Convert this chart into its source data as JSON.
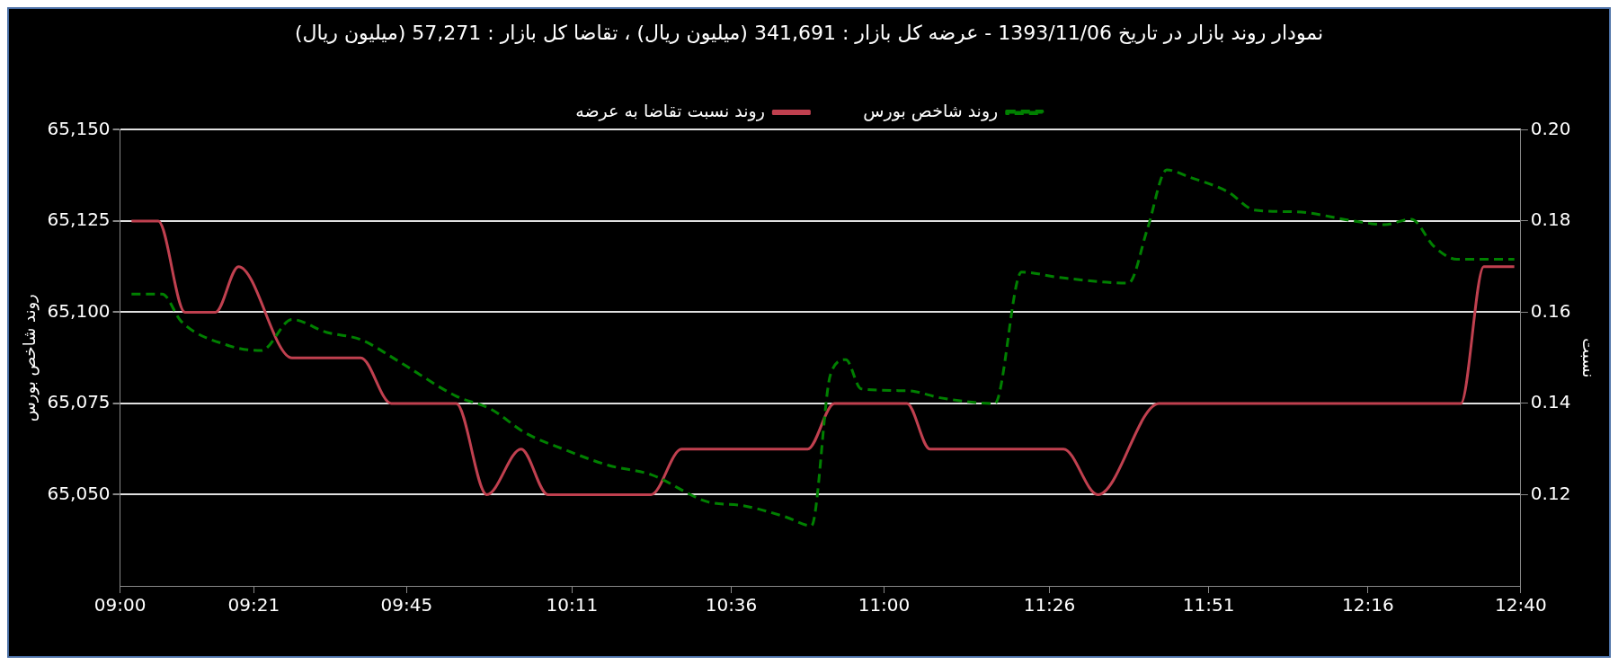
{
  "chart_data": {
    "type": "line",
    "title": "نمودار روند بازار در تاریخ 1393/11/06 - عرضه کل بازار : 341,691 (میلیون ریال) ، تقاضا کل بازار : 57,271 (میلیون ریال)",
    "ylabel": "روند شاخص بورس",
    "y2label": "نسبت",
    "xlim": [
      9,
      12.667
    ],
    "xticks": [
      {
        "value": 9,
        "label": "09:00"
      },
      {
        "value": 9.35,
        "label": "09:21"
      },
      {
        "value": 9.75,
        "label": "09:45"
      },
      {
        "value": 10.183,
        "label": "10:11"
      },
      {
        "value": 10.6,
        "label": "10:36"
      },
      {
        "value": 11,
        "label": "11:00"
      },
      {
        "value": 11.433,
        "label": "11:26"
      },
      {
        "value": 11.85,
        "label": "11:51"
      },
      {
        "value": 12.267,
        "label": "12:16"
      },
      {
        "value": 12.667,
        "label": "12:40"
      }
    ],
    "ylim": [
      65025,
      65150
    ],
    "yticks": [
      {
        "value": 65050,
        "label": "65,050"
      },
      {
        "value": 65075,
        "label": "65,075"
      },
      {
        "value": 65100,
        "label": "65,100"
      },
      {
        "value": 65125,
        "label": "65,125"
      },
      {
        "value": 65150,
        "label": "65,150"
      }
    ],
    "y2lim": [
      0.1,
      0.2
    ],
    "y2ticks": [
      {
        "value": 0.12,
        "label": "0.12"
      },
      {
        "value": 0.14,
        "label": "0.14"
      },
      {
        "value": 0.16,
        "label": "0.16"
      },
      {
        "value": 0.18,
        "label": "0.18"
      },
      {
        "value": 0.2,
        "label": "0.20"
      }
    ],
    "grid": "y",
    "legend": "top",
    "marker": "none",
    "series": [
      {
        "name": "روند شاخص بورس",
        "color": "#008000",
        "line_style": "dashed",
        "x": [
          9.03,
          9.11,
          9.16,
          9.28,
          9.37,
          9.45,
          9.54,
          9.63,
          9.73,
          9.88,
          9.97,
          10.06,
          10.16,
          10.28,
          10.39,
          10.54,
          10.63,
          10.74,
          10.81,
          10.86,
          10.9,
          10.94,
          11.06,
          11.15,
          11.29,
          11.36,
          11.46,
          11.64,
          11.69,
          11.74,
          11.8,
          11.9,
          11.97,
          12.08,
          12.23,
          12.31,
          12.38,
          12.44,
          12.5,
          12.65
        ],
        "values": [
          65105,
          65105,
          65097.5,
          65091,
          65089.5,
          65098,
          65094.5,
          65092.5,
          65086.5,
          65077,
          65073.5,
          65067,
          65062.5,
          65058,
          65055.5,
          65048,
          65047,
          65044,
          65041.5,
          65083,
          65087,
          65079,
          65078.5,
          65076.5,
          65075,
          65111,
          65109.5,
          65108,
          65123,
          65139,
          65137,
          65133,
          65128,
          65127.5,
          65125,
          65124,
          65125.5,
          65118,
          65114.5,
          65114.5
        ]
      },
      {
        "name": "روند نسبت تقاضا به عرضه",
        "color": "#c0404f",
        "line_style": "solid",
        "axis": "y2",
        "x": [
          9.03,
          9.1,
          9.17,
          9.25,
          9.31,
          9.45,
          9.63,
          9.71,
          9.88,
          9.96,
          10.05,
          10.12,
          10.39,
          10.47,
          10.8,
          10.87,
          11.06,
          11.12,
          11.47,
          11.56,
          11.72,
          12.51,
          12.57,
          12.65
        ],
        "values": [
          0.18,
          0.18,
          0.16,
          0.16,
          0.17,
          0.15,
          0.15,
          0.14,
          0.14,
          0.12,
          0.13,
          0.12,
          0.12,
          0.13,
          0.13,
          0.14,
          0.14,
          0.13,
          0.13,
          0.12,
          0.14,
          0.14,
          0.17,
          0.17
        ]
      }
    ]
  }
}
